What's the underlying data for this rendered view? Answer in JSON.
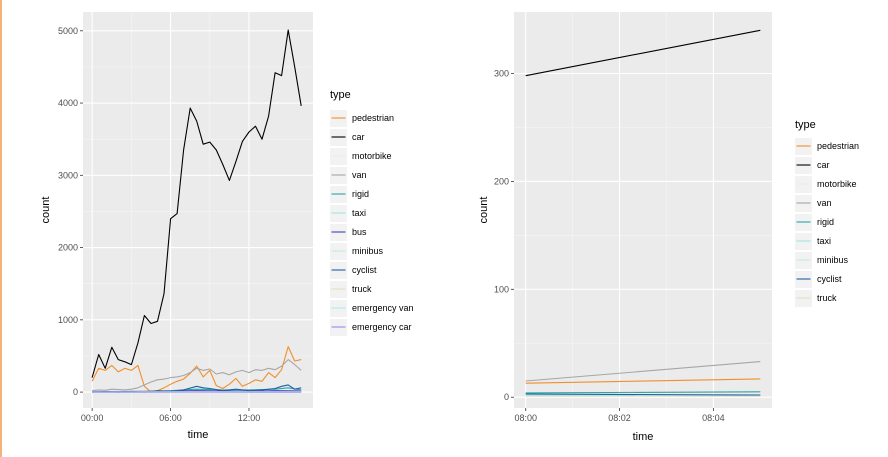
{
  "chart_data": [
    {
      "type": "line",
      "title": "",
      "xlabel": "time",
      "ylabel": "count",
      "x_unit": "hours",
      "xlim": [
        -0.7,
        16.9
      ],
      "ylim": [
        -220,
        5260
      ],
      "xticks": [
        {
          "value": 0,
          "label": "00:00"
        },
        {
          "value": 6,
          "label": "06:00"
        },
        {
          "value": 12,
          "label": "12:00"
        }
      ],
      "yticks": [
        {
          "value": 0,
          "label": "0"
        },
        {
          "value": 1000,
          "label": "1000"
        },
        {
          "value": 2000,
          "label": "2000"
        },
        {
          "value": 3000,
          "label": "3000"
        },
        {
          "value": 4000,
          "label": "4000"
        },
        {
          "value": 5000,
          "label": "5000"
        }
      ],
      "grid": true,
      "legend_title": "type",
      "legend_position": "right",
      "series": [
        {
          "name": "pedestrian",
          "color": "#f28e2b",
          "x": [
            0,
            0.5,
            1,
            1.5,
            2,
            2.5,
            3,
            3.5,
            4,
            4.5,
            5,
            5.5,
            6,
            6.5,
            7,
            7.5,
            8,
            8.5,
            9,
            9.5,
            10,
            10.5,
            11,
            11.5,
            12,
            12.5,
            13,
            13.5,
            14,
            14.5,
            15,
            15.5,
            16
          ],
          "y": [
            150,
            330,
            300,
            370,
            280,
            330,
            300,
            370,
            80,
            0,
            20,
            60,
            110,
            150,
            180,
            260,
            360,
            210,
            300,
            90,
            50,
            110,
            190,
            80,
            120,
            170,
            150,
            270,
            200,
            310,
            630,
            430,
            450
          ]
        },
        {
          "name": "car",
          "color": "#000000",
          "x": [
            0,
            0.5,
            1,
            1.5,
            2,
            2.5,
            3,
            3.5,
            4,
            4.5,
            5,
            5.5,
            6,
            6.5,
            7,
            7.5,
            8,
            8.5,
            9,
            9.5,
            10,
            10.5,
            11,
            11.5,
            12,
            12.5,
            13,
            13.5,
            14,
            14.5,
            15,
            15.5,
            16
          ],
          "y": [
            200,
            520,
            330,
            620,
            450,
            420,
            380,
            680,
            1060,
            950,
            980,
            1360,
            2400,
            2470,
            3350,
            3930,
            3750,
            3430,
            3460,
            3350,
            3150,
            2930,
            3190,
            3470,
            3600,
            3680,
            3500,
            3820,
            4420,
            4380,
            5010,
            4500,
            3960
          ]
        },
        {
          "name": "motorbike",
          "color": "#ececec",
          "x": [
            0,
            4,
            8,
            12,
            16
          ],
          "y": [
            5,
            8,
            10,
            8,
            6
          ]
        },
        {
          "name": "van",
          "color": "#a6a6a6",
          "x": [
            0,
            0.5,
            1,
            1.5,
            2,
            2.5,
            3,
            3.5,
            4,
            4.5,
            5,
            5.5,
            6,
            6.5,
            7,
            7.5,
            8,
            8.5,
            9,
            9.5,
            10,
            10.5,
            11,
            11.5,
            12,
            12.5,
            13,
            13.5,
            14,
            14.5,
            15,
            15.5,
            16
          ],
          "y": [
            20,
            30,
            25,
            40,
            35,
            30,
            40,
            60,
            100,
            140,
            170,
            180,
            200,
            210,
            230,
            270,
            330,
            300,
            320,
            250,
            270,
            240,
            280,
            300,
            270,
            310,
            300,
            330,
            310,
            360,
            450,
            380,
            300
          ]
        },
        {
          "name": "rigid",
          "color": "#2ca4a4",
          "x": [
            0,
            2,
            4,
            6,
            8,
            10,
            12,
            14,
            15,
            16
          ],
          "y": [
            5,
            8,
            10,
            20,
            40,
            30,
            30,
            40,
            60,
            30
          ]
        },
        {
          "name": "taxi",
          "color": "#9fe3e3",
          "x": [
            0,
            4,
            8,
            12,
            16
          ],
          "y": [
            8,
            10,
            20,
            15,
            20
          ]
        },
        {
          "name": "bus",
          "color": "#3f3fbf",
          "x": [
            0,
            2,
            4,
            6,
            8,
            10,
            12,
            14,
            16
          ],
          "y": [
            3,
            5,
            10,
            15,
            20,
            15,
            10,
            20,
            15
          ]
        },
        {
          "name": "minibus",
          "color": "#c2ecec",
          "x": [
            0,
            4,
            8,
            12,
            16
          ],
          "y": [
            2,
            4,
            6,
            5,
            4
          ]
        },
        {
          "name": "cyclist",
          "color": "#1f5fa8",
          "x": [
            0,
            1,
            2,
            3,
            4,
            5,
            6,
            7,
            8,
            8.5,
            9,
            10,
            11,
            12,
            13,
            14,
            14.5,
            15,
            15.5,
            16
          ],
          "y": [
            0,
            5,
            0,
            10,
            0,
            20,
            10,
            30,
            80,
            60,
            50,
            20,
            40,
            20,
            30,
            50,
            80,
            100,
            40,
            60
          ]
        },
        {
          "name": "truck",
          "color": "#e6dcc0",
          "x": [
            0,
            4,
            8,
            12,
            16
          ],
          "y": [
            3,
            5,
            8,
            6,
            5
          ]
        },
        {
          "name": "emergency van",
          "color": "#aeeaea",
          "x": [
            0,
            8,
            16
          ],
          "y": [
            0,
            2,
            0
          ]
        },
        {
          "name": "emergency car",
          "color": "#8c8cf0",
          "x": [
            0,
            8,
            16
          ],
          "y": [
            0,
            1,
            0
          ]
        }
      ]
    },
    {
      "type": "line",
      "title": "",
      "xlabel": "time",
      "ylabel": "count",
      "x_unit": "minutes",
      "xlim": [
        -0.25,
        5.25
      ],
      "ylim": [
        -10,
        357
      ],
      "xticks": [
        {
          "value": 0,
          "label": "08:00"
        },
        {
          "value": 2,
          "label": "08:02"
        },
        {
          "value": 4,
          "label": "08:04"
        }
      ],
      "yticks": [
        {
          "value": 0,
          "label": "0"
        },
        {
          "value": 100,
          "label": "100"
        },
        {
          "value": 200,
          "label": "200"
        },
        {
          "value": 300,
          "label": "300"
        }
      ],
      "grid": true,
      "legend_title": "type",
      "legend_position": "right",
      "series": [
        {
          "name": "pedestrian",
          "color": "#f28e2b",
          "x": [
            0,
            5
          ],
          "y": [
            13,
            17
          ]
        },
        {
          "name": "car",
          "color": "#000000",
          "x": [
            0,
            5
          ],
          "y": [
            298,
            340
          ]
        },
        {
          "name": "motorbike",
          "color": "#ececec",
          "x": [
            0,
            5
          ],
          "y": [
            1,
            1
          ]
        },
        {
          "name": "van",
          "color": "#a6a6a6",
          "x": [
            0,
            5
          ],
          "y": [
            15,
            33
          ]
        },
        {
          "name": "rigid",
          "color": "#2ca4a4",
          "x": [
            0,
            5
          ],
          "y": [
            4,
            5
          ]
        },
        {
          "name": "taxi",
          "color": "#9fe3e3",
          "x": [
            0,
            5
          ],
          "y": [
            2,
            2
          ]
        },
        {
          "name": "minibus",
          "color": "#c2ecec",
          "x": [
            0,
            5
          ],
          "y": [
            1,
            1
          ]
        },
        {
          "name": "cyclist",
          "color": "#1f5fa8",
          "x": [
            0,
            5
          ],
          "y": [
            3,
            2
          ]
        },
        {
          "name": "truck",
          "color": "#e6dcc0",
          "x": [
            0,
            5
          ],
          "y": [
            1,
            1
          ]
        }
      ]
    }
  ]
}
